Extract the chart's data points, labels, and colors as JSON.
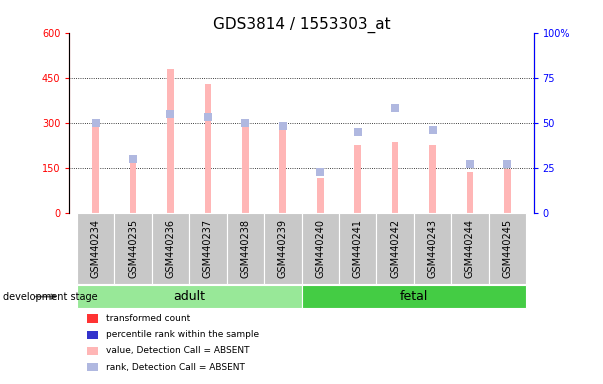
{
  "title": "GDS3814 / 1553303_at",
  "samples": [
    "GSM440234",
    "GSM440235",
    "GSM440236",
    "GSM440237",
    "GSM440238",
    "GSM440239",
    "GSM440240",
    "GSM440241",
    "GSM440242",
    "GSM440243",
    "GSM440244",
    "GSM440245"
  ],
  "transformed_count": [
    295,
    193,
    480,
    430,
    290,
    283,
    118,
    228,
    235,
    228,
    138,
    148
  ],
  "percentile_rank": [
    50,
    30,
    55,
    53,
    50,
    48,
    23,
    45,
    58,
    46,
    27,
    27
  ],
  "detection_call": [
    "ABSENT",
    "ABSENT",
    "ABSENT",
    "ABSENT",
    "ABSENT",
    "ABSENT",
    "ABSENT",
    "ABSENT",
    "ABSENT",
    "ABSENT",
    "ABSENT",
    "ABSENT"
  ],
  "groups": [
    {
      "name": "adult",
      "start": 0,
      "end": 6,
      "color": "#98E898"
    },
    {
      "name": "fetal",
      "start": 6,
      "end": 12,
      "color": "#44CC44"
    }
  ],
  "ylim_left": [
    0,
    600
  ],
  "ylim_right": [
    0,
    100
  ],
  "yticks_left": [
    0,
    150,
    300,
    450,
    600
  ],
  "yticks_right": [
    0,
    25,
    50,
    75,
    100
  ],
  "bar_color_absent": "#FFB6B6",
  "rank_color_absent": "#B0B8E0",
  "bar_color_present": "#FF4444",
  "rank_color_present": "#3333CC",
  "grid_color": "black",
  "title_fontsize": 11,
  "tick_fontsize": 7,
  "label_area_color": "#C8C8C8",
  "group_label_fontsize": 9,
  "dev_stage_label": "development stage",
  "legend_items": [
    {
      "label": "transformed count",
      "color": "#FF3333"
    },
    {
      "label": "percentile rank within the sample",
      "color": "#3333CC"
    },
    {
      "label": "value, Detection Call = ABSENT",
      "color": "#FFB6B6"
    },
    {
      "label": "rank, Detection Call = ABSENT",
      "color": "#B0B8E0"
    }
  ]
}
